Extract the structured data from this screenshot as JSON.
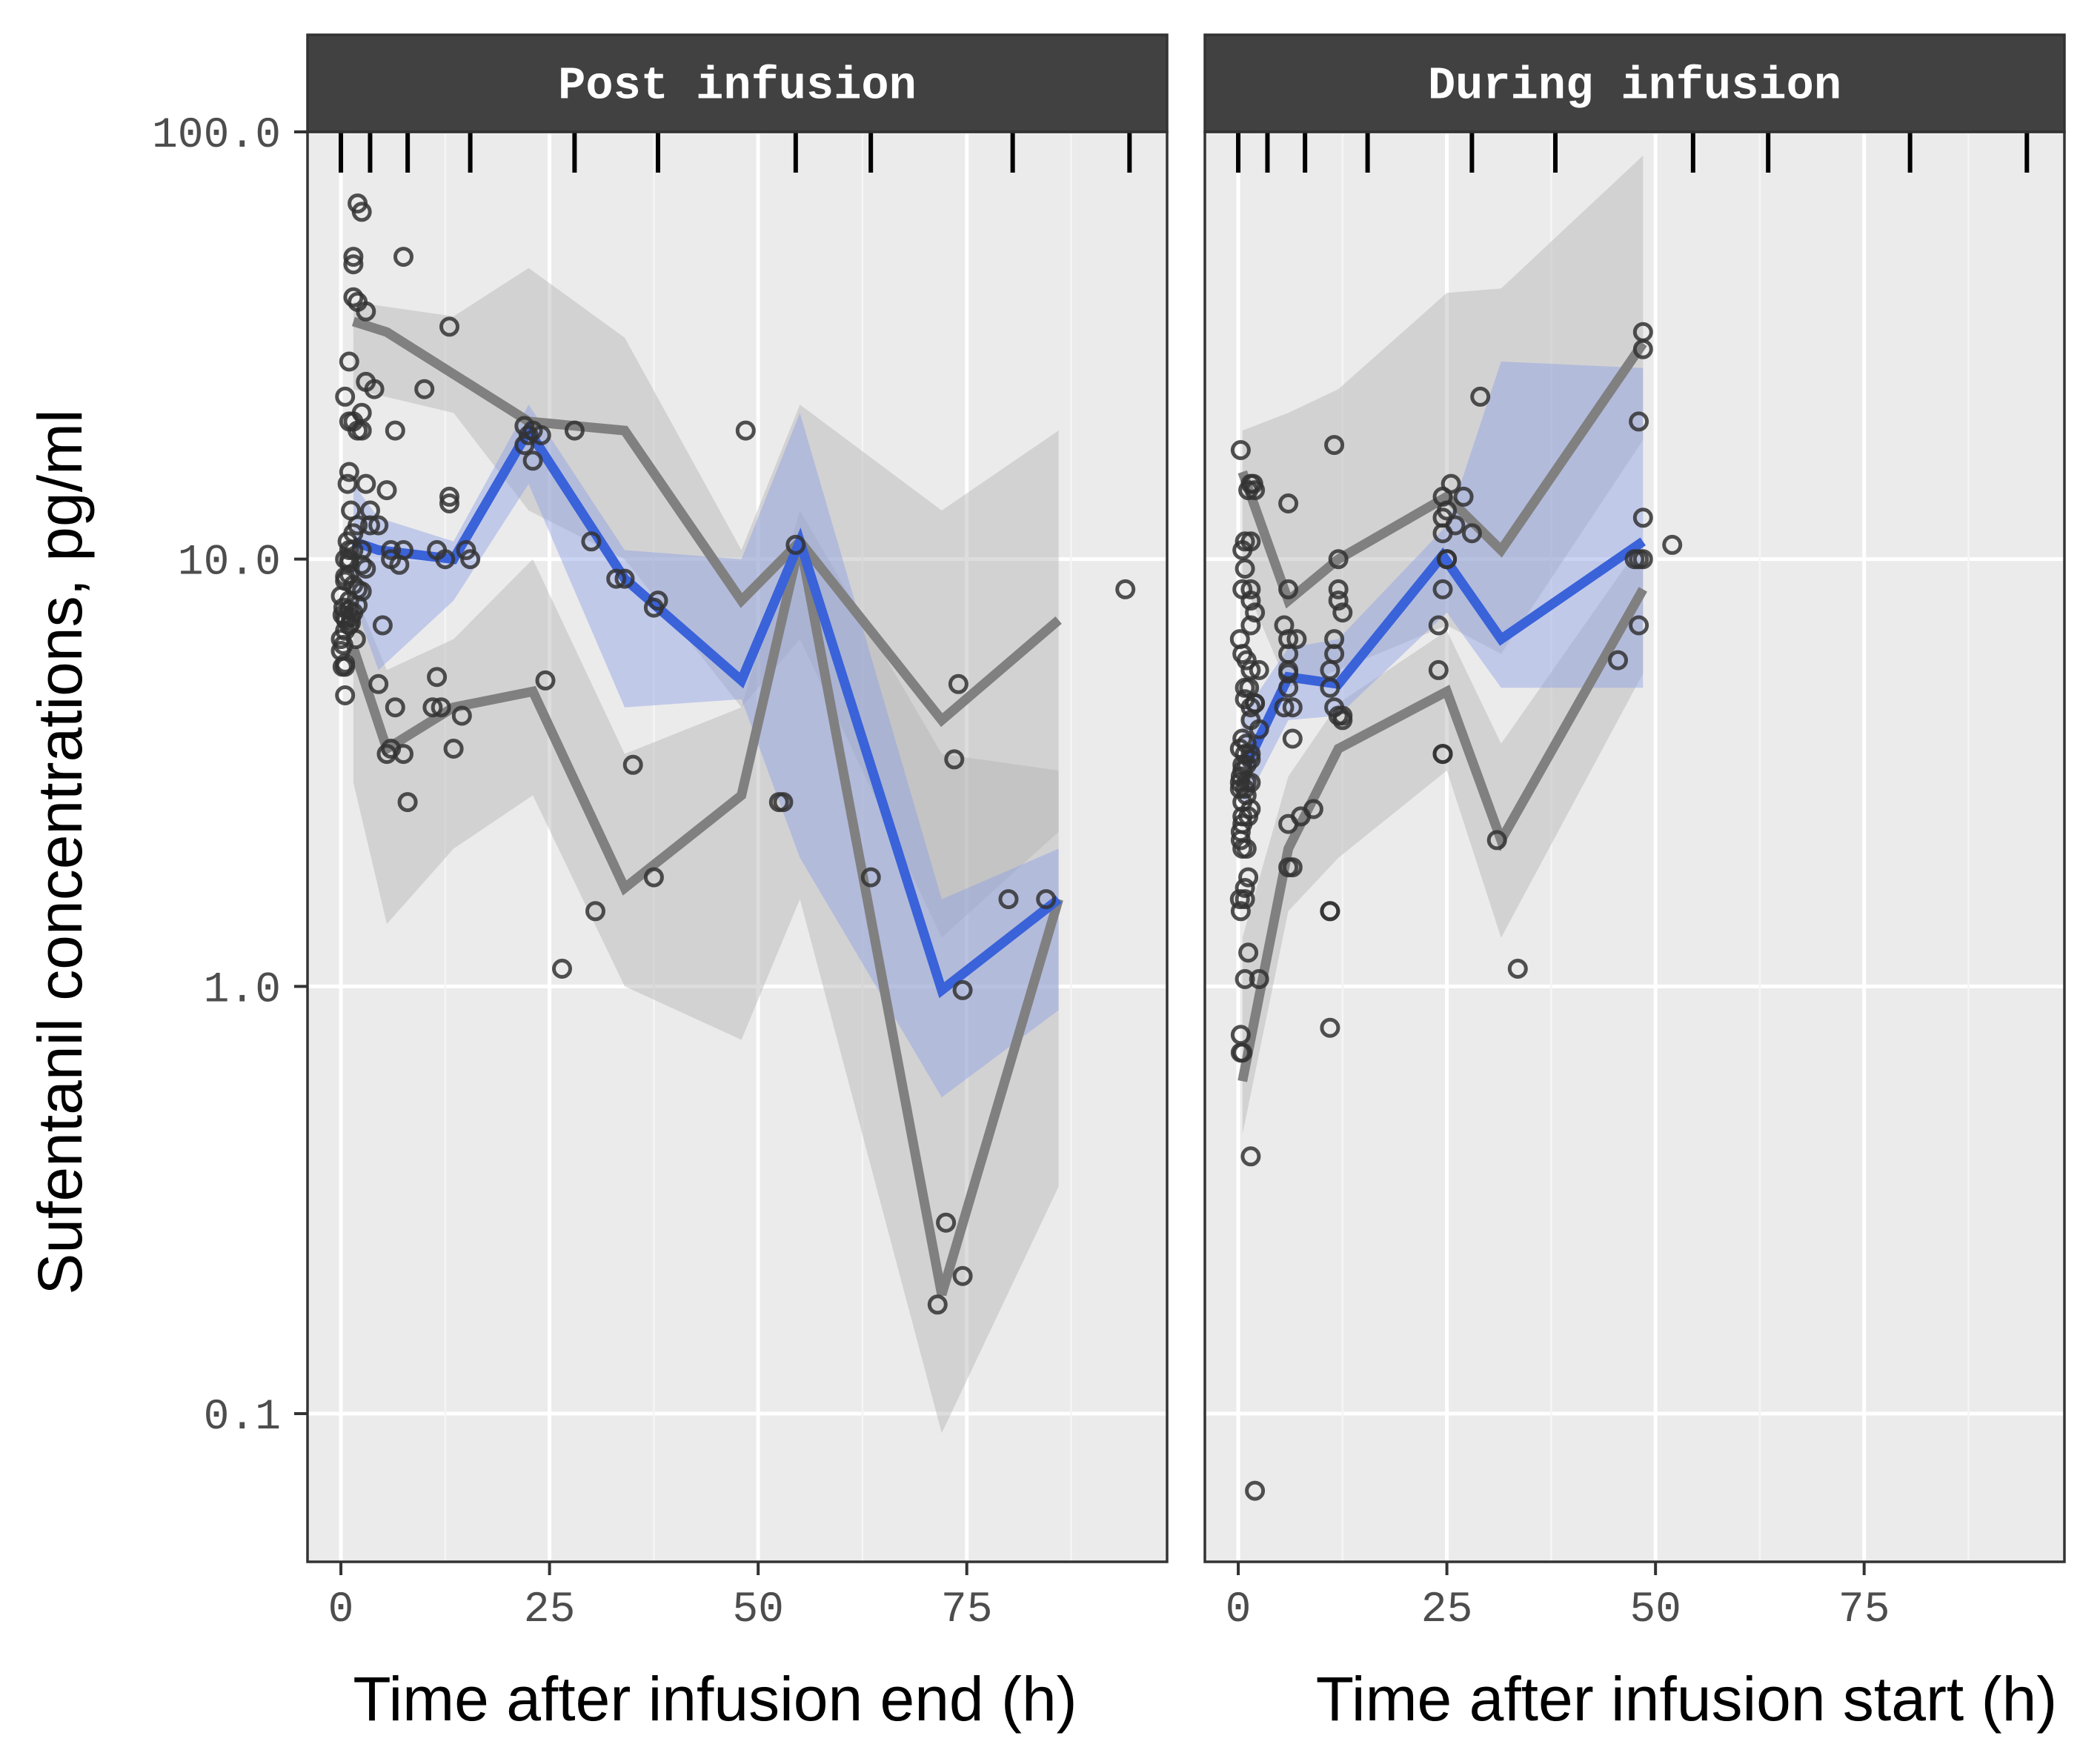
{
  "chart_data": {
    "type": "scatter",
    "ylabel": "Sufentanil concentrations, pg/ml",
    "yscale": "log10",
    "ylim": [
      0.045,
      100
    ],
    "yticks": [
      0.1,
      1.0,
      10.0,
      100.0
    ],
    "ytick_labels": [
      "0.1",
      "1.0",
      "10.0",
      "100.0"
    ],
    "grid": true,
    "colors": {
      "median": "#3a62d9",
      "median_band": "#b4c0ea",
      "percentile": "#808080",
      "percentile_band": "#c4c4c4",
      "strip": "#414141",
      "panel": "#ebebeb",
      "points": "#333333"
    },
    "panels": [
      {
        "title": "Post infusion",
        "xlabel": "Time after infusion end (h)",
        "xlim": [
          -4,
          99
        ],
        "xticks": [
          0,
          25,
          50,
          75
        ],
        "bin_edges": [
          0,
          3.5,
          8,
          15.5,
          28,
          38,
          54.5,
          63.5,
          80.5,
          94.5
        ],
        "observed_median": {
          "x": [
            1.5,
            4.5,
            13.5,
            22.5,
            34,
            48,
            55,
            72,
            86
          ],
          "y": [
            11,
            10.5,
            10,
            20,
            9,
            5.2,
            11,
            0.98,
            1.6
          ]
        },
        "observed_p95": {
          "x": [
            1.5,
            5.5,
            22.5,
            34,
            48,
            55,
            72,
            86
          ],
          "y": [
            36,
            34,
            21,
            20,
            8,
            11,
            4.2,
            7.2
          ]
        },
        "observed_p05": {
          "x": [
            1.5,
            5.5,
            13.5,
            23,
            34,
            48,
            55,
            72,
            86
          ],
          "y": [
            6.2,
            3.6,
            4.5,
            4.9,
            1.7,
            2.8,
            11,
            0.19,
            1.6
          ]
        },
        "median_ci": {
          "x": [
            1.5,
            4.5,
            13.5,
            22.5,
            34,
            48,
            55,
            72,
            86
          ],
          "lo": [
            8,
            5.5,
            8,
            15,
            4.5,
            4.7,
            2,
            0.55,
            0.88
          ],
          "hi": [
            15,
            12.5,
            11,
            23,
            10.5,
            10,
            22,
            1.6,
            2.1
          ]
        },
        "p95_ci": {
          "x": [
            1.5,
            13.5,
            22.5,
            34,
            48,
            55,
            72,
            86
          ],
          "lo": [
            25,
            22,
            13,
            10,
            4.5,
            6.5,
            1.3,
            2.3
          ],
          "hi": [
            40,
            37,
            48,
            33,
            10.5,
            23,
            13,
            20
          ]
        },
        "p05_ci": {
          "x": [
            1.5,
            5.5,
            13.5,
            23,
            34,
            48,
            55,
            72,
            86
          ],
          "lo": [
            3,
            1.4,
            2.1,
            2.8,
            1.0,
            0.75,
            1.6,
            0.09,
            0.34
          ],
          "hi": [
            8.5,
            5.5,
            6.5,
            10,
            3.5,
            4.5,
            13,
            3.5,
            3.2
          ]
        },
        "points": {
          "x": [
            2,
            2.5,
            1.5,
            1.5,
            1.5,
            2,
            3,
            7.5,
            1,
            3,
            4,
            10,
            13,
            0.5,
            2.5,
            1,
            1.5,
            2.5,
            2,
            1,
            6.5,
            0.8,
            3,
            3.5,
            1.2,
            2,
            1.5,
            0.8,
            1.5,
            2.5,
            1,
            1,
            0.5,
            1,
            2.5,
            3,
            1,
            0.5,
            0.5,
            1.5,
            2,
            2.5,
            0,
            1,
            2,
            0.3,
            1,
            1.5,
            0.2,
            0.5,
            1.2,
            0.6,
            1.2,
            1,
            0.5,
            0,
            1.8,
            0.3,
            0,
            0.5,
            0.2,
            0.5,
            4.5,
            0.5,
            6.5,
            5.5,
            6,
            6,
            4.5,
            3.5,
            7,
            7.5,
            5,
            6,
            5.5,
            7.5,
            8,
            11.5,
            12,
            13.5,
            13,
            14.5,
            15.5,
            11,
            11.5,
            13,
            15,
            12.5,
            22,
            22.5,
            22,
            23,
            24,
            23,
            28,
            30,
            33,
            34,
            38,
            37.5,
            48.5,
            24.5,
            35,
            26.5,
            37.5,
            30.5,
            54.5,
            53,
            52.5,
            63.5,
            71.5,
            74.5,
            72.5,
            73.5,
            74,
            74.5,
            80,
            84.5,
            94
          ],
          "y": [
            68,
            65,
            51,
            49,
            41,
            40,
            38,
            51,
            29,
            26,
            25,
            25,
            35,
            24,
            22,
            21,
            21,
            20,
            20,
            16,
            20,
            15,
            15,
            13,
            13,
            12,
            11.5,
            11,
            10.5,
            10.5,
            10.5,
            10,
            10,
            9.8,
            9.7,
            9.5,
            9.2,
            9.1,
            8.9,
            8.7,
            8.5,
            8.4,
            8.2,
            8,
            7.8,
            7.7,
            7.6,
            7.5,
            7.4,
            7.3,
            7.3,
            7.2,
            7.1,
            7,
            6.8,
            6.5,
            6.5,
            6.3,
            6.1,
            5.7,
            5.6,
            5.6,
            5.1,
            4.8,
            4.5,
            14.5,
            10.5,
            10,
            12,
            12,
            9.7,
            10.5,
            7,
            3.6,
            3.5,
            3.5,
            2.7,
            5.3,
            4.5,
            3.6,
            13.5,
            4.3,
            10,
            4.5,
            10.5,
            14,
            10.5,
            10,
            20.5,
            19.5,
            18.5,
            17,
            19.5,
            20,
            20,
            11,
            9,
            9,
            8,
            7.7,
            20,
            5.2,
            3.3,
            1.1,
            1.8,
            1.5,
            10.8,
            2.7,
            2.7,
            1.8,
            0.18,
            0.98,
            0.28,
            3.4,
            5.1,
            0.21,
            1.6,
            1.6,
            8.5
          ]
        },
        "rug_x": [
          0,
          3.5,
          8,
          15.5,
          28,
          38,
          54.5,
          63.5,
          80.5,
          94.5
        ]
      },
      {
        "title": "During infusion",
        "xlabel": "Time after infusion start (h)",
        "xlim": [
          -4,
          99
        ],
        "xticks": [
          0,
          25,
          50,
          75
        ],
        "bin_edges": [
          0,
          3.5,
          8,
          15.5,
          28,
          38,
          54.5,
          63.5,
          80.5,
          94.5
        ],
        "observed_median": {
          "x": [
            1,
            6,
            12,
            24.5,
            31.5,
            48.5
          ],
          "y": [
            3.3,
            5.3,
            5.1,
            10.2,
            6.5,
            11
          ]
        },
        "observed_p95": {
          "x": [
            0.5,
            6,
            12,
            25,
            31.5,
            48.5
          ],
          "y": [
            16,
            8,
            10,
            14,
            10.5,
            32
          ]
        },
        "observed_p05": {
          "x": [
            0.5,
            6,
            12,
            25,
            31.5,
            48.5
          ],
          "y": [
            0.6,
            2.1,
            3.6,
            4.9,
            2.2,
            8.5
          ]
        },
        "median_ci": {
          "x": [
            0.5,
            6,
            12,
            25,
            31.5,
            48.5
          ],
          "lo": [
            2.6,
            4.2,
            4.3,
            7.5,
            5,
            5
          ],
          "hi": [
            4.3,
            6.2,
            6.5,
            12,
            29,
            28
          ]
        },
        "p95_ci": {
          "x": [
            0.5,
            6,
            12,
            25,
            31.5,
            48.5
          ],
          "lo": [
            9,
            5,
            5.5,
            7,
            6,
            19
          ],
          "hi": [
            20,
            22,
            25,
            42,
            43,
            88
          ]
        },
        "p05_ci": {
          "x": [
            0.5,
            6,
            12,
            25,
            31.5,
            48.5
          ],
          "lo": [
            0.45,
            1.5,
            2,
            3.2,
            1.3,
            5.4
          ],
          "hi": [
            1.3,
            3.1,
            4.6,
            6.8,
            3.7,
            11
          ]
        },
        "points": {
          "x": [
            0.3,
            1.5,
            1.8,
            2,
            1.2,
            0.8,
            1.5,
            0.5,
            0.8,
            1.5,
            0.5,
            1.5,
            2,
            1.5,
            0.2,
            0.5,
            1,
            1.5,
            2.5,
            0.8,
            1.3,
            2,
            0.8,
            1.5,
            2,
            1.5,
            2.5,
            0.5,
            1,
            0.2,
            0.8,
            1.5,
            1.5,
            0.5,
            1,
            0.5,
            0.3,
            0.2,
            1,
            1.5,
            0.2,
            0.8,
            1,
            0.5,
            1.5,
            0.5,
            1.2,
            0.5,
            0.3,
            0.3,
            0.5,
            1,
            1.2,
            0.8,
            0.8,
            0.3,
            0.2,
            1.2,
            2.5,
            0.8,
            0.3,
            0.3,
            0.5,
            1.5,
            6,
            6,
            5.5,
            6,
            7,
            6,
            6,
            6,
            6,
            5.5,
            6.5,
            6.5,
            6,
            11.5,
            12,
            12,
            12,
            12.5,
            11.5,
            11.5,
            11,
            11,
            11.5,
            12,
            12.5,
            12.5,
            11,
            9,
            7.5,
            11,
            6,
            6.5,
            11,
            24,
            24.5,
            25,
            24.5,
            24.5,
            25,
            24.5,
            25,
            25.5,
            24,
            27,
            28,
            29,
            26,
            24.5,
            24.5,
            31,
            33.5,
            48.5,
            48.5,
            48,
            48.5,
            48,
            48.5,
            48,
            47.5,
            52,
            45.5
          ],
          "y": [
            18,
            15,
            15,
            14.5,
            14.5,
            11,
            11,
            10.5,
            9.5,
            8.5,
            8.5,
            8,
            7.5,
            7,
            6.5,
            6,
            5.8,
            5.5,
            5.5,
            5,
            5,
            4.6,
            4.7,
            4.5,
            4.6,
            4.2,
            4,
            3.8,
            3.7,
            3.6,
            3.5,
            3.5,
            3.4,
            3.3,
            3.3,
            3.2,
            3.1,
            3,
            3,
            3,
            2.9,
            2.9,
            2.8,
            2.7,
            2.6,
            2.5,
            2.5,
            2.4,
            2.3,
            2.2,
            2.1,
            2.1,
            1.8,
            1.7,
            1.6,
            1.5,
            1.6,
            1.2,
            1.04,
            1.04,
            0.77,
            0.7,
            0.7,
            0.4,
            13.5,
            8.5,
            7,
            6.5,
            6.5,
            6,
            5.5,
            5.4,
            5,
            4.5,
            4.5,
            3.8,
            2.4,
            18.5,
            10,
            8.5,
            8,
            7.5,
            6.5,
            6,
            5.5,
            5,
            4.5,
            4.3,
            4.3,
            4.2,
            1.5,
            2.6,
            2.5,
            0.8,
            1.9,
            1.9,
            1.5,
            7,
            12.5,
            10,
            11.5,
            14,
            10,
            8.5,
            13,
            15,
            5.5,
            14,
            11.5,
            24,
            12,
            3.5,
            3.5,
            2.2,
            1.1,
            34,
            31,
            21,
            12.5,
            10,
            10,
            7,
            10,
            10.8,
            5.8
          ]
        },
        "extra_points": {
          "x": [
            2
          ],
          "y": [
            0.066
          ]
        },
        "rug_x": [
          0,
          3.5,
          8,
          15.5,
          28,
          38,
          54.5,
          63.5,
          80.5,
          94.5
        ]
      }
    ]
  }
}
